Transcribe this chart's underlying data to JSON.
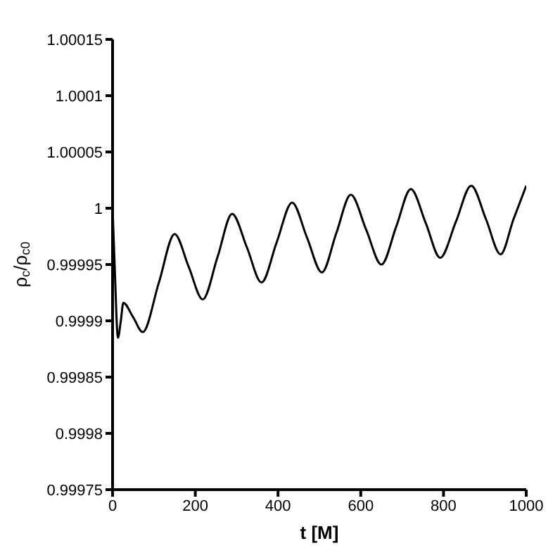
{
  "chart_data": {
    "type": "line",
    "xlabel": "t [M]",
    "ylabel": "ρ$_{c}$/ρ$_{c0}$",
    "x": [
      0,
      5,
      13,
      20,
      26,
      50,
      73,
      112,
      150,
      184,
      218,
      254,
      289,
      325,
      360,
      397,
      434,
      470,
      506,
      541,
      576,
      613,
      650,
      686,
      721,
      757,
      792,
      830,
      867,
      903,
      938,
      969,
      1000
    ],
    "series": [
      {
        "color": "#000000",
        "values": [
          1.0,
          0.99995,
          0.999885,
          0.9999,
          0.999916,
          0.999903,
          0.99989,
          0.999934,
          0.999977,
          0.999948,
          0.999919,
          0.999957,
          0.999995,
          0.999965,
          0.999934,
          0.99997,
          1.000005,
          0.999974,
          0.999943,
          0.999978,
          1.000012,
          0.999981,
          0.99995,
          0.999984,
          1.000017,
          0.999987,
          0.999956,
          0.999988,
          1.00002,
          0.99999,
          0.999959,
          0.99999,
          1.00002
        ]
      }
    ],
    "xlim": [
      0,
      1000
    ],
    "xticks": [
      0,
      200,
      400,
      600,
      800,
      1000
    ],
    "ylim": [
      0.99975,
      1.00015
    ],
    "yticks": [
      0.99975,
      0.9998,
      0.99985,
      0.9999,
      0.99995,
      1,
      1.00005,
      1.0001,
      1.00015
    ],
    "grid": false,
    "legend": false,
    "marker": "none",
    "line_style": "solid"
  }
}
